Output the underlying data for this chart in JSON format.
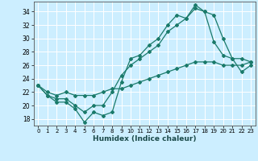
{
  "title": "",
  "xlabel": "Humidex (Indice chaleur)",
  "bg_color": "#cceeff",
  "line_color": "#1a7a6a",
  "xlim": [
    -0.5,
    23.5
  ],
  "ylim": [
    17.0,
    35.5
  ],
  "xticks": [
    0,
    1,
    2,
    3,
    4,
    5,
    6,
    7,
    8,
    9,
    10,
    11,
    12,
    13,
    14,
    15,
    16,
    17,
    18,
    19,
    20,
    21,
    22,
    23
  ],
  "yticks": [
    18,
    20,
    22,
    24,
    26,
    28,
    30,
    32,
    34
  ],
  "line1_x": [
    0,
    1,
    2,
    3,
    4,
    5,
    6,
    7,
    8,
    9,
    10,
    11,
    12,
    13,
    14,
    15,
    16,
    17,
    18,
    19,
    20,
    21,
    22,
    23
  ],
  "line1_y": [
    23,
    21.5,
    20.5,
    20.5,
    19.5,
    17.5,
    19,
    18.5,
    19,
    23.5,
    27,
    27.5,
    29,
    30,
    32,
    33.5,
    33,
    35,
    34,
    29.5,
    27.5,
    27,
    25,
    26
  ],
  "line2_x": [
    0,
    1,
    2,
    3,
    4,
    5,
    6,
    7,
    8,
    9,
    10,
    11,
    12,
    13,
    14,
    15,
    16,
    17,
    18,
    19,
    20,
    21,
    22,
    23
  ],
  "line2_y": [
    23,
    21.5,
    21,
    21,
    20,
    19,
    20,
    20,
    22,
    24.5,
    26,
    27,
    28,
    29,
    31,
    32,
    33,
    34.5,
    34,
    33.5,
    30,
    27,
    27,
    26.5
  ],
  "line3_x": [
    0,
    1,
    2,
    3,
    4,
    5,
    6,
    7,
    8,
    9,
    10,
    11,
    12,
    13,
    14,
    15,
    16,
    17,
    18,
    19,
    20,
    21,
    22,
    23
  ],
  "line3_y": [
    23,
    22,
    21.5,
    22,
    21.5,
    21.5,
    21.5,
    22,
    22.5,
    22.5,
    23,
    23.5,
    24,
    24.5,
    25,
    25.5,
    26,
    26.5,
    26.5,
    26.5,
    26,
    26,
    26,
    26.5
  ],
  "xtick_fontsize": 5.0,
  "ytick_fontsize": 5.5,
  "xlabel_fontsize": 6.5,
  "grid_color": "#ffffff",
  "grid_lw": 0.7
}
